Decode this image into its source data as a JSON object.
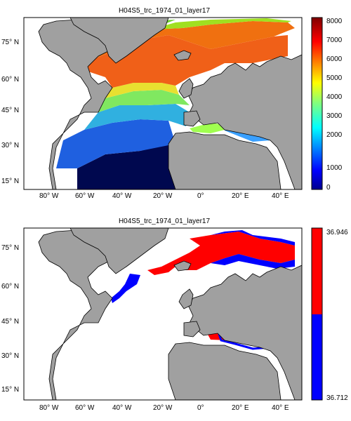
{
  "panels": [
    {
      "title": "H04S5_trc_1974_01_layer17",
      "colorbar": {
        "type": "continuous",
        "colormap": "jet",
        "min": 0,
        "max": 8000,
        "tick_labels": [
          "8000",
          "7000",
          "6000",
          "5000",
          "4000",
          "3000",
          "2000",
          "1000",
          "0"
        ]
      }
    },
    {
      "title": "H04S5_trc_1974_01_layer17",
      "colorbar": {
        "type": "two-color",
        "max_label": "36.946",
        "min_label": "36.712",
        "colors": [
          "#ff0000",
          "#0000ff"
        ]
      }
    }
  ],
  "axes": {
    "lat_labels": [
      "75° N",
      "60° N",
      "45° N",
      "30° N",
      "15° N"
    ],
    "lon_labels": [
      "80° W",
      "60° W",
      "40° W",
      "20° W",
      "0°",
      "20° E",
      "40° E"
    ]
  },
  "colors": {
    "land": "#a0a0a0",
    "ocean_nodata": "#ffffff",
    "coast": "#000000"
  }
}
